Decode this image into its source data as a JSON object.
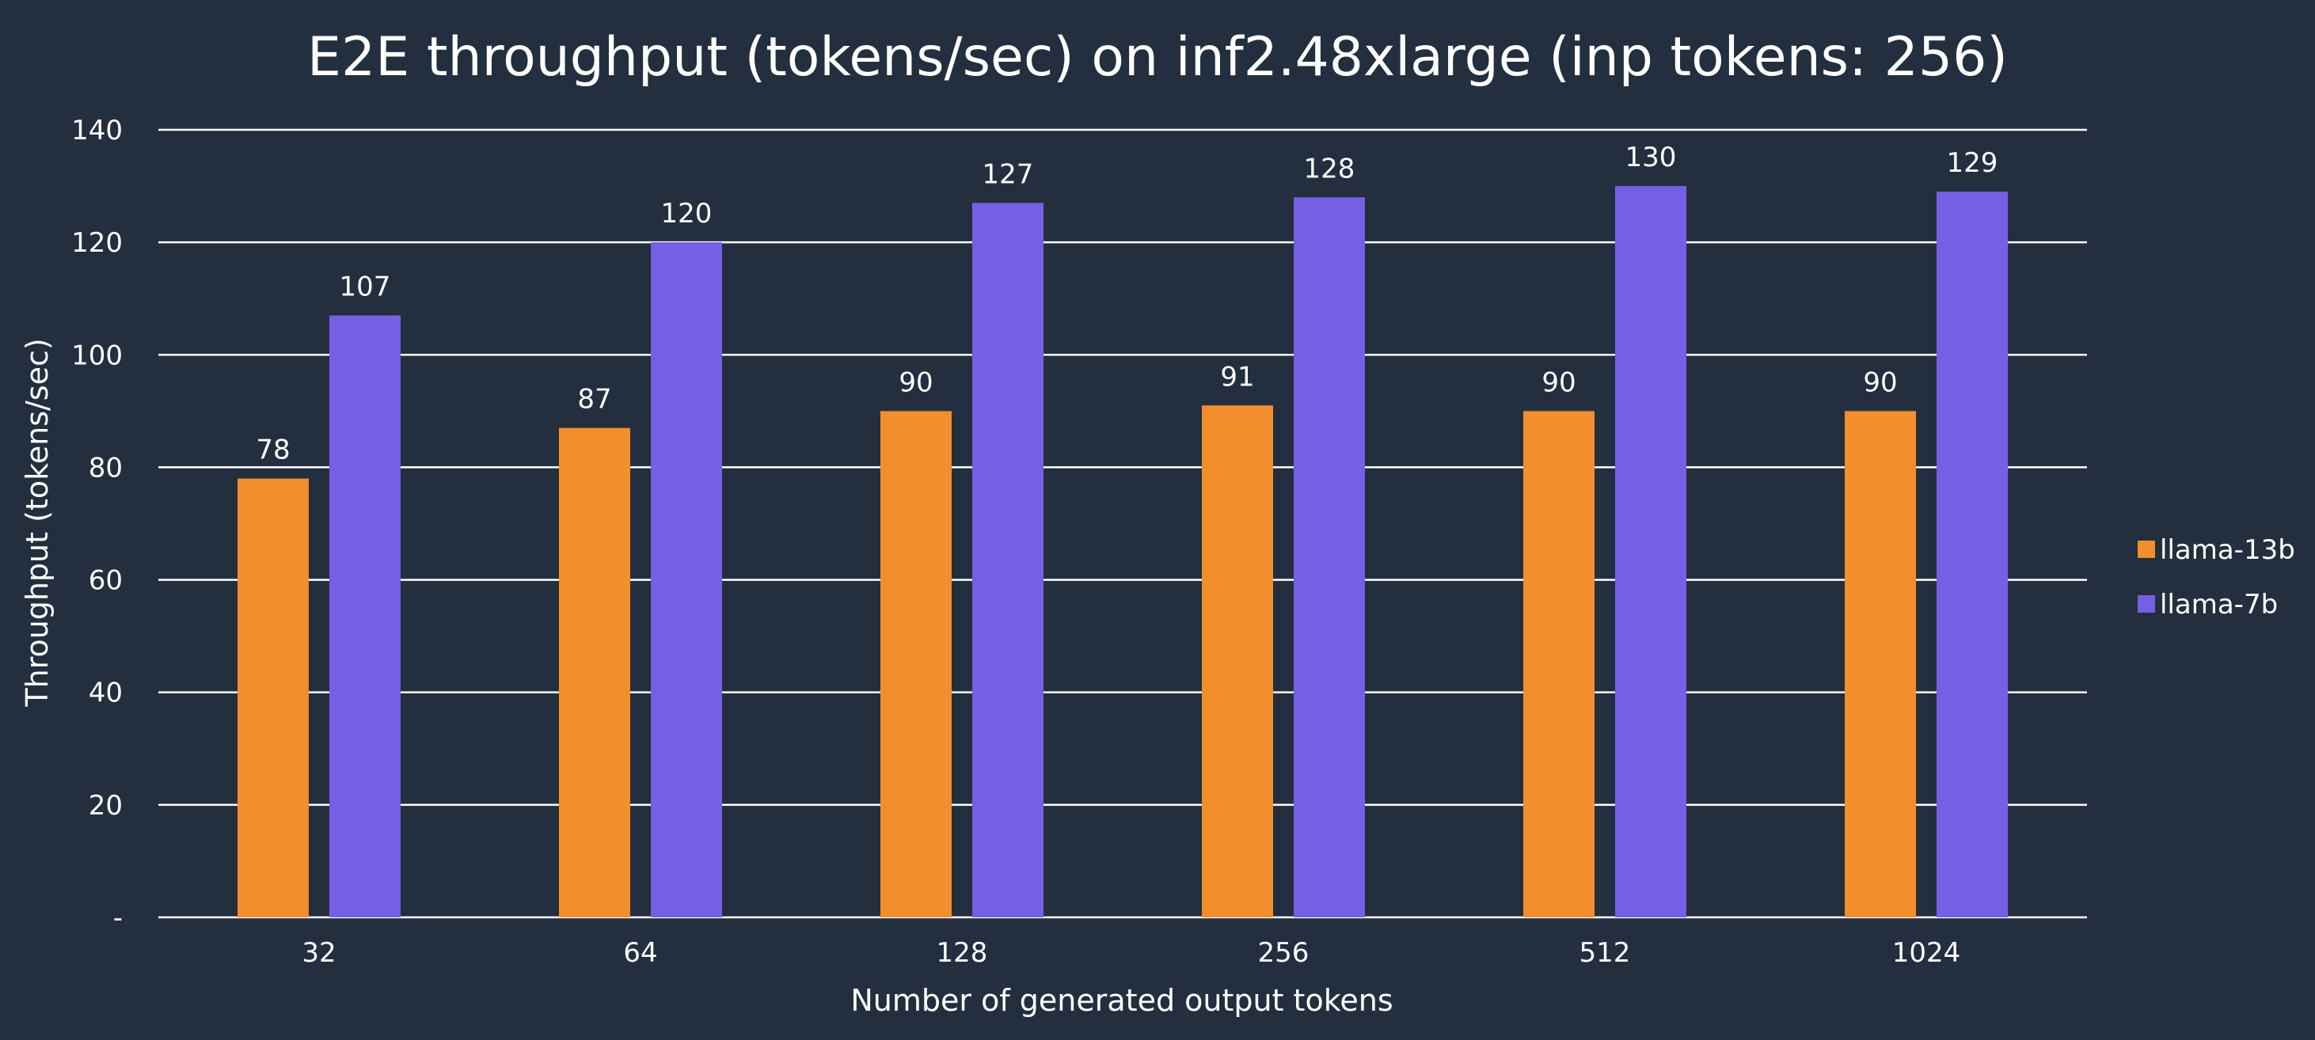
{
  "chart_data": {
    "type": "bar",
    "title": "E2E throughput (tokens/sec) on inf2.48xlarge (inp tokens: 256)",
    "xlabel": "Number of generated output tokens",
    "ylabel": "Throughput (tokens/sec)",
    "categories": [
      "32",
      "64",
      "128",
      "256",
      "512",
      "1024"
    ],
    "series": [
      {
        "name": "llama-13b",
        "color": "#f28e2b",
        "values": [
          78,
          87,
          90,
          91,
          90,
          90
        ]
      },
      {
        "name": "llama-7b",
        "color": "#7560e5",
        "values": [
          107,
          120,
          127,
          128,
          130,
          129
        ]
      }
    ],
    "ylim": [
      0,
      140
    ],
    "yticks": [
      0,
      20,
      40,
      60,
      80,
      100,
      120,
      140
    ],
    "ytick_labels": [
      "-",
      "20",
      "40",
      "60",
      "80",
      "100",
      "120",
      "140"
    ],
    "grid": true,
    "legend_position": "right",
    "background_color": "#232f3e"
  }
}
